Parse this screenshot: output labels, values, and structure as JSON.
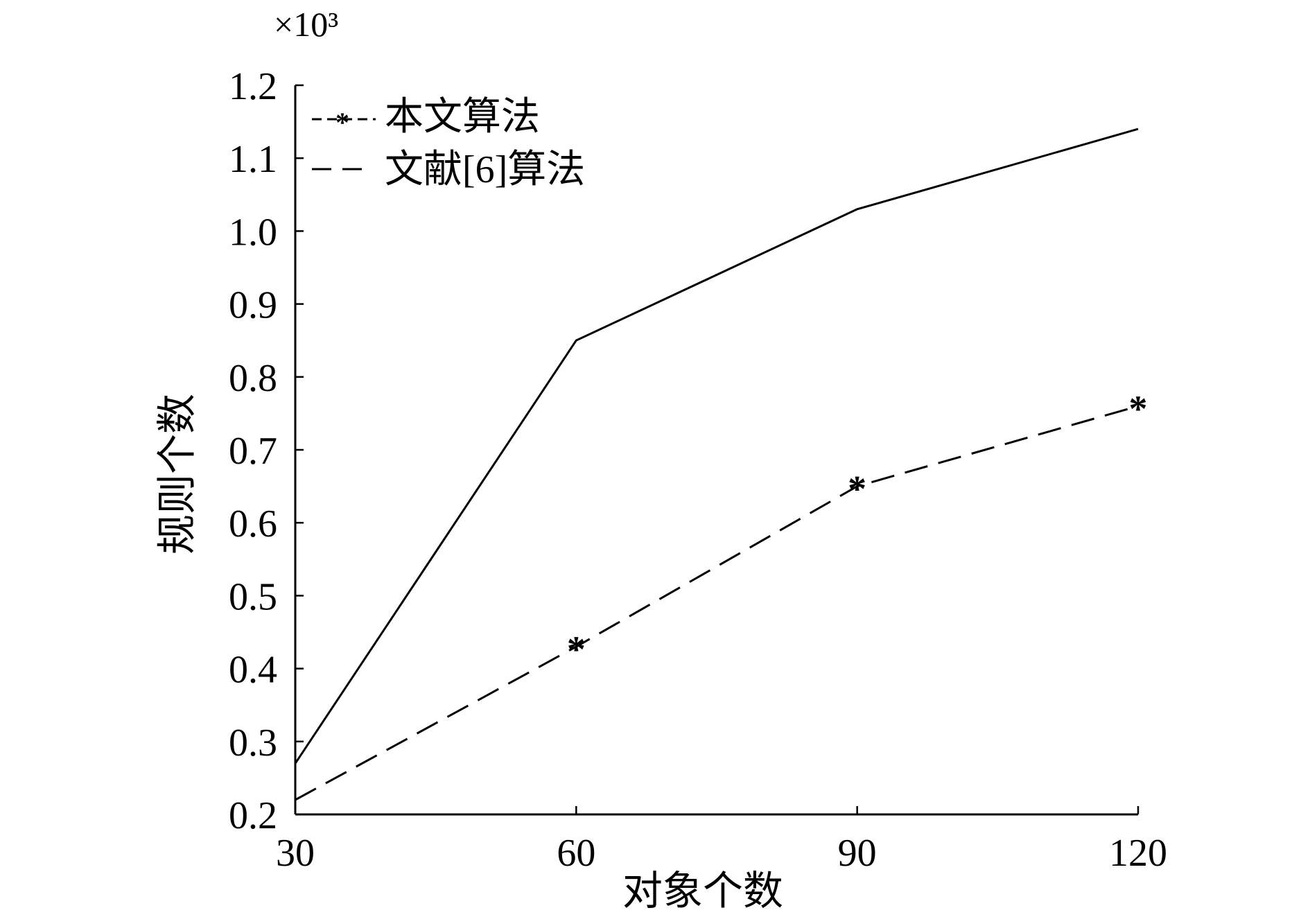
{
  "chart_data": {
    "type": "line",
    "x": [
      30,
      60,
      90,
      120
    ],
    "xticks": [
      "30",
      "60",
      "90",
      "120"
    ],
    "yticks": [
      "0.2",
      "0.3",
      "0.4",
      "0.5",
      "0.6",
      "0.7",
      "0.8",
      "0.9",
      "1.0",
      "1.1",
      "1.2"
    ],
    "xlim": [
      30,
      120
    ],
    "ylim": [
      0.2,
      1.2
    ],
    "xlabel": "对象个数",
    "ylabel": "规则个数",
    "y_multiplier": "×10³",
    "legend_position": "top-left",
    "grid": false,
    "series": [
      {
        "name": "本文算法",
        "style": "dashed-star",
        "values": [
          0.22,
          0.43,
          0.65,
          0.76
        ]
      },
      {
        "name": "文献[6]算法",
        "style": "solid",
        "values": [
          0.27,
          0.85,
          1.03,
          1.14
        ]
      }
    ]
  }
}
